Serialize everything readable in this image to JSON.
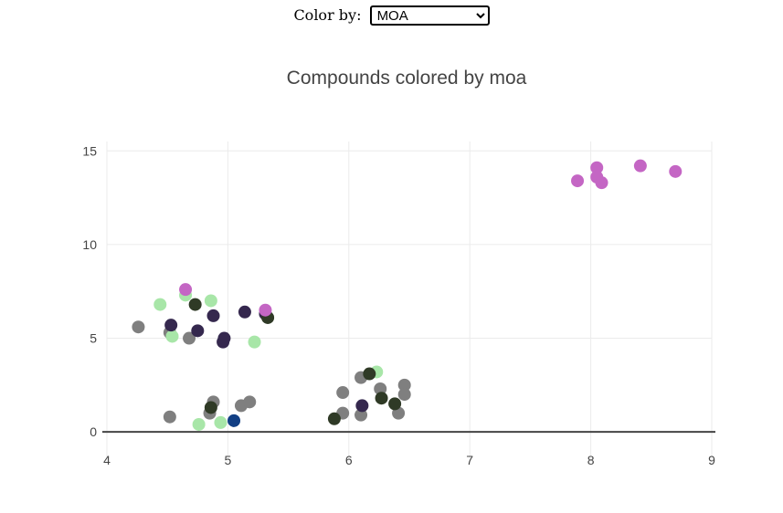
{
  "controls": {
    "color_by_label": "Color by:",
    "selected": "MOA"
  },
  "colors": {
    "grey": "#7f7f7f",
    "light_green": "#a8e6a8",
    "dark_purple": "#35284e",
    "dark_green": "#2f3a26",
    "orchid": "#c466c4",
    "navy": "#123f84"
  },
  "chart_data": {
    "type": "scatter",
    "title": "Compounds colored by moa",
    "xlabel": "",
    "ylabel": "",
    "xlim": [
      4,
      9
    ],
    "ylim": [
      -1.6,
      15.5
    ],
    "xticks": [
      4,
      5,
      6,
      7,
      8,
      9
    ],
    "yticks": [
      0,
      5,
      10,
      15
    ],
    "grid": true,
    "legend": "none",
    "groups": [
      {
        "color": "grey",
        "points": [
          [
            4.26,
            5.6
          ],
          [
            4.52,
            5.3
          ],
          [
            4.52,
            0.8
          ],
          [
            4.68,
            5.0
          ],
          [
            4.85,
            1.0
          ],
          [
            4.88,
            1.6
          ],
          [
            5.11,
            1.4
          ],
          [
            5.18,
            1.6
          ],
          [
            5.95,
            2.1
          ],
          [
            5.95,
            1.0
          ],
          [
            6.1,
            2.9
          ],
          [
            6.1,
            0.9
          ],
          [
            6.26,
            2.3
          ],
          [
            6.41,
            1.0
          ],
          [
            6.46,
            2.5
          ],
          [
            6.46,
            2.0
          ]
        ]
      },
      {
        "color": "light_green",
        "points": [
          [
            4.44,
            6.8
          ],
          [
            4.54,
            5.1
          ],
          [
            4.65,
            7.3
          ],
          [
            4.76,
            0.4
          ],
          [
            4.86,
            7.0
          ],
          [
            4.94,
            0.5
          ],
          [
            5.22,
            4.8
          ],
          [
            6.23,
            3.2
          ]
        ]
      },
      {
        "color": "dark_purple",
        "points": [
          [
            4.53,
            5.7
          ],
          [
            4.75,
            5.4
          ],
          [
            4.88,
            6.2
          ],
          [
            4.96,
            4.8
          ],
          [
            4.97,
            5.0
          ],
          [
            5.14,
            6.4
          ],
          [
            5.31,
            6.3
          ],
          [
            6.11,
            1.4
          ]
        ]
      },
      {
        "color": "dark_green",
        "points": [
          [
            4.73,
            6.8
          ],
          [
            4.86,
            1.3
          ],
          [
            5.33,
            6.1
          ],
          [
            5.88,
            0.7
          ],
          [
            6.17,
            3.1
          ],
          [
            6.27,
            1.8
          ],
          [
            6.38,
            1.5
          ]
        ]
      },
      {
        "color": "orchid",
        "points": [
          [
            4.65,
            7.6
          ],
          [
            5.31,
            6.5
          ],
          [
            7.89,
            13.4
          ],
          [
            8.05,
            14.1
          ],
          [
            8.05,
            13.6
          ],
          [
            8.09,
            13.3
          ],
          [
            8.41,
            14.2
          ],
          [
            8.7,
            13.9
          ]
        ]
      },
      {
        "color": "navy",
        "points": [
          [
            5.05,
            0.6
          ]
        ]
      }
    ]
  }
}
